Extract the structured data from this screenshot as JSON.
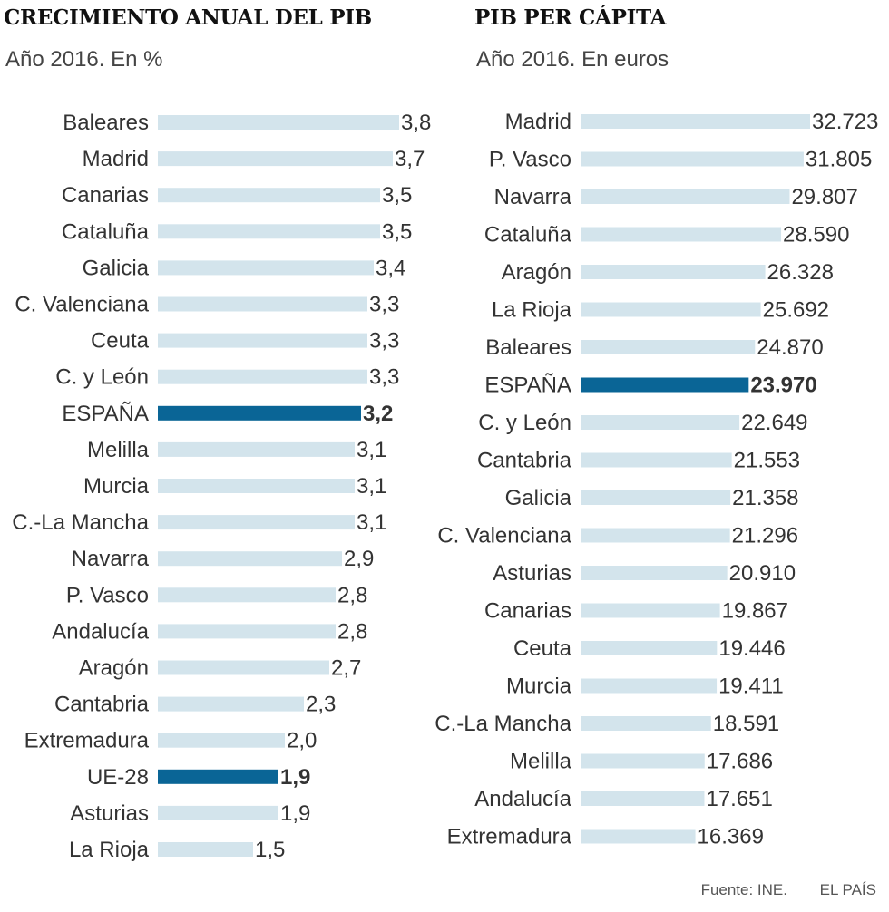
{
  "colors": {
    "bar": "#d3e4ec",
    "highlight": "#0a6596",
    "label": "#333333",
    "value": "#333333"
  },
  "charts": {
    "growth": {
      "title": "CRECIMIENTO ANUAL DEL PIB",
      "subtitle": "Año 2016. En %"
    },
    "per_capita": {
      "title": "PIB PER CÁPITA",
      "subtitle": "Año 2016. En euros"
    }
  },
  "chart_data": [
    {
      "type": "bar",
      "orientation": "horizontal",
      "title": "CRECIMIENTO ANUAL DEL PIB",
      "subtitle": "Año 2016. En %",
      "categories": [
        "Baleares",
        "Madrid",
        "Canarias",
        "Cataluña",
        "Galicia",
        "C. Valenciana",
        "Ceuta",
        "C. y León",
        "ESPAÑA",
        "Melilla",
        "Murcia",
        "C.-La Mancha",
        "Navarra",
        "P. Vasco",
        "Andalucía",
        "Aragón",
        "Cantabria",
        "Extremadura",
        "UE-28",
        "Asturias",
        "La Rioja"
      ],
      "values": [
        3.8,
        3.7,
        3.5,
        3.5,
        3.4,
        3.3,
        3.3,
        3.3,
        3.2,
        3.1,
        3.1,
        3.1,
        2.9,
        2.8,
        2.8,
        2.7,
        2.3,
        2.0,
        1.9,
        1.9,
        1.5
      ],
      "value_labels": [
        "3,8",
        "3,7",
        "3,5",
        "3,5",
        "3,4",
        "3,3",
        "3,3",
        "3,3",
        "3,2",
        "3,1",
        "3,1",
        "3,1",
        "2,9",
        "2,8",
        "2,8",
        "2,7",
        "2,3",
        "2,0",
        "1,9",
        "1,9",
        "1,5"
      ],
      "highlight": [
        "ESPAÑA",
        "UE-28"
      ],
      "xlim": [
        0,
        3.8
      ],
      "grid": false,
      "axes_visible": false
    },
    {
      "type": "bar",
      "orientation": "horizontal",
      "title": "PIB PER CÁPITA",
      "subtitle": "Año 2016. En euros",
      "categories": [
        "Madrid",
        "P. Vasco",
        "Navarra",
        "Cataluña",
        "Aragón",
        "La Rioja",
        "Baleares",
        "ESPAÑA",
        "C. y León",
        "Cantabria",
        "Galicia",
        "C. Valenciana",
        "Asturias",
        "Canarias",
        "Ceuta",
        "Murcia",
        "C.-La Mancha",
        "Melilla",
        "Andalucía",
        "Extremadura"
      ],
      "values": [
        32723,
        31805,
        29807,
        28590,
        26328,
        25692,
        24870,
        23970,
        22649,
        21553,
        21358,
        21296,
        20910,
        19867,
        19446,
        19411,
        18591,
        17686,
        17651,
        16369
      ],
      "value_labels": [
        "32.723",
        "31.805",
        "29.807",
        "28.590",
        "26.328",
        "25.692",
        "24.870",
        "23.970",
        "22.649",
        "21.553",
        "21.358",
        "21.296",
        "20.910",
        "19.867",
        "19.446",
        "19.411",
        "18.591",
        "17.686",
        "17.651",
        "16.369"
      ],
      "highlight": [
        "ESPAÑA"
      ],
      "xlim": [
        0,
        32723
      ],
      "grid": false,
      "axes_visible": false
    }
  ],
  "footer": {
    "source": "Fuente: INE.",
    "brand": "EL PAÍS"
  }
}
